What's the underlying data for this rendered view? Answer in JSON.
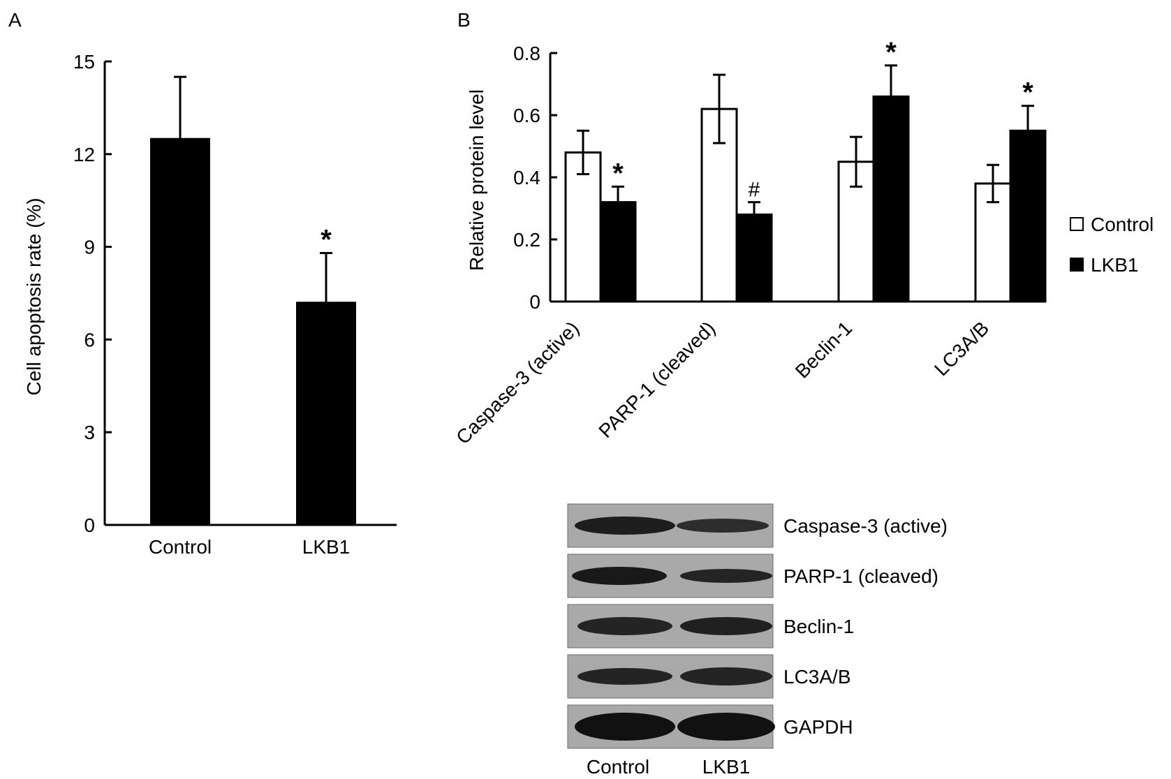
{
  "panels": {
    "a_label": "A",
    "b_label": "B"
  },
  "chart_data": [
    {
      "type": "bar",
      "panel": "A",
      "title": "",
      "xlabel": "",
      "ylabel": "Cell apoptosis rate (%)",
      "ylim": [
        0,
        15
      ],
      "yticks": [
        0,
        3,
        6,
        9,
        12,
        15
      ],
      "categories": [
        "Control",
        "LKB1"
      ],
      "values": [
        12.5,
        7.2
      ],
      "errors": [
        2.0,
        1.6
      ],
      "annotations": [
        "",
        "*"
      ],
      "bar_color": "#000000",
      "grid": false
    },
    {
      "type": "bar",
      "panel": "B",
      "title": "",
      "xlabel": "",
      "ylabel": "Relative protein level",
      "ylim": [
        0,
        0.8
      ],
      "yticks": [
        "0",
        "0.2",
        "0.4",
        "0.6",
        "0.8"
      ],
      "categories": [
        "Caspase-3 (active)",
        "PARP-1 (cleaved)",
        "Beclin-1",
        "LC3A/B"
      ],
      "series": [
        {
          "name": "Control",
          "values": [
            0.48,
            0.62,
            0.45,
            0.38
          ],
          "errors": [
            0.07,
            0.11,
            0.08,
            0.06
          ],
          "annotations": [
            "",
            "",
            "",
            ""
          ],
          "color": "#ffffff"
        },
        {
          "name": "LKB1",
          "values": [
            0.32,
            0.28,
            0.66,
            0.55
          ],
          "errors": [
            0.05,
            0.04,
            0.1,
            0.08
          ],
          "annotations": [
            "*",
            "#",
            "*",
            "*"
          ],
          "color": "#000000"
        }
      ],
      "legend_position": "right",
      "grid": false
    }
  ],
  "blot": {
    "rows": [
      "Caspase-3 (active)",
      "PARP-1 (cleaved)",
      "Beclin-1",
      "LC3A/B",
      "GAPDH"
    ],
    "lanes": [
      "Control",
      "LKB1"
    ]
  }
}
